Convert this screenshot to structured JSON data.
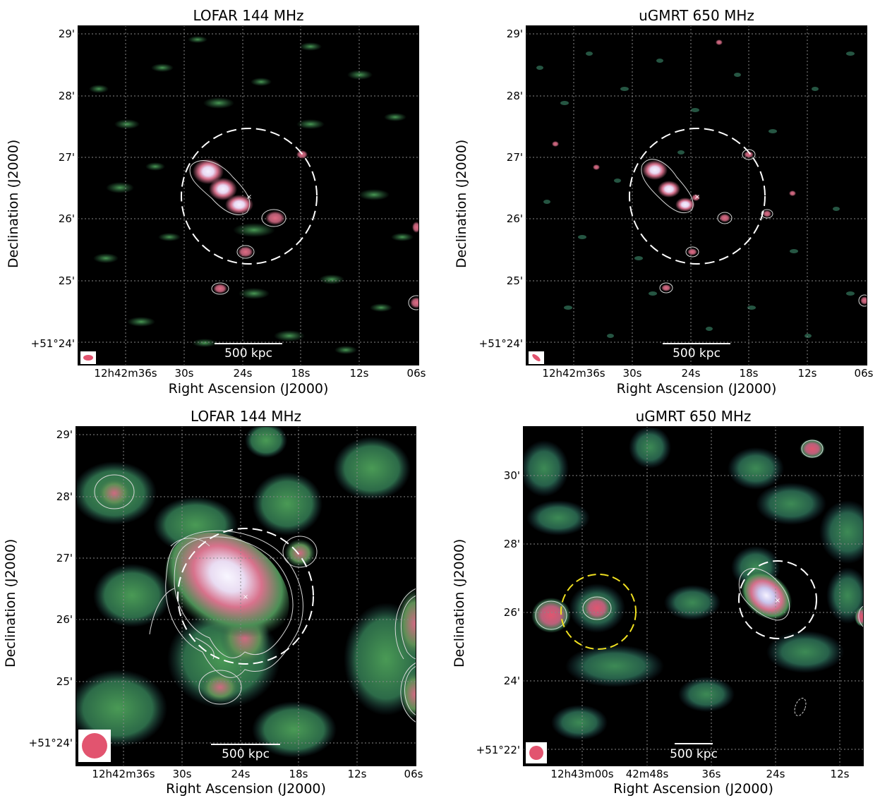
{
  "panels": [
    {
      "title": "LOFAR 144 MHz",
      "xlabel": "Right Ascension (J2000)",
      "ylabel": "Declination (J2000)",
      "xticks": [
        "12h42m36s",
        "30s",
        "24s",
        "18s",
        "12s",
        "06s"
      ],
      "yticks": [
        "29'",
        "28'",
        "27'",
        "26'",
        "25'",
        "+51°24'"
      ],
      "scalebar": "500 kpc",
      "beam_color": "#e2546f"
    },
    {
      "title": "uGMRT 650 MHz",
      "xlabel": "Right Ascension (J2000)",
      "ylabel": "Declination (J2000)",
      "xticks": [
        "12h42m36s",
        "30s",
        "24s",
        "18s",
        "12s",
        "06s"
      ],
      "yticks": [
        "29'",
        "28'",
        "27'",
        "26'",
        "25'",
        "+51°24'"
      ],
      "scalebar": "500 kpc",
      "beam_color": "#e2546f"
    },
    {
      "title": "LOFAR 144 MHz",
      "xlabel": "Right Ascension (J2000)",
      "ylabel": "Declination (J2000)",
      "xticks": [
        "12h42m36s",
        "30s",
        "24s",
        "18s",
        "12s",
        "06s"
      ],
      "yticks": [
        "29'",
        "28'",
        "27'",
        "26'",
        "25'",
        "+51°24'"
      ],
      "scalebar": "500 kpc",
      "beam_color": "#e2546f"
    },
    {
      "title": "uGMRT 650 MHz",
      "xlabel": "Right Ascension (J2000)",
      "ylabel": "Declination (J2000)",
      "xticks": [
        "12h43m00s",
        "42m48s",
        "36s",
        "24s",
        "12s"
      ],
      "yticks": [
        "30'",
        "28'",
        "26'",
        "24'",
        "+51°22'"
      ],
      "scalebar": "500 kpc",
      "beam_color": "#e2546f"
    }
  ],
  "colors": {
    "background": "#000000",
    "noise": "#2c5a3a",
    "emission_mid": "#3e8f55",
    "emission_pink": "#d86a82",
    "emission_peak": "#f4f0ff",
    "circle_main": "#ffffff",
    "circle_alt": "#f0e020"
  }
}
